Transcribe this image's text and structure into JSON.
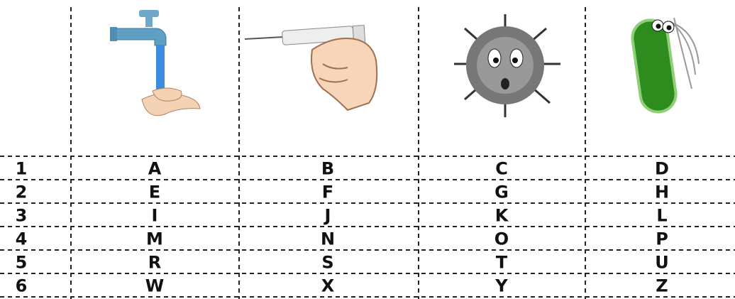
{
  "table": {
    "rows": [
      [
        "1",
        "A",
        "B",
        "C",
        "D"
      ],
      [
        "2",
        "E",
        "F",
        "G",
        "H"
      ],
      [
        "3",
        "I",
        "J",
        "K",
        "L"
      ],
      [
        "4",
        "M",
        "N",
        "O",
        "P"
      ],
      [
        "5",
        "R",
        "S",
        "T",
        "U"
      ],
      [
        "6",
        "W",
        "X",
        "Y",
        "Z"
      ]
    ]
  }
}
